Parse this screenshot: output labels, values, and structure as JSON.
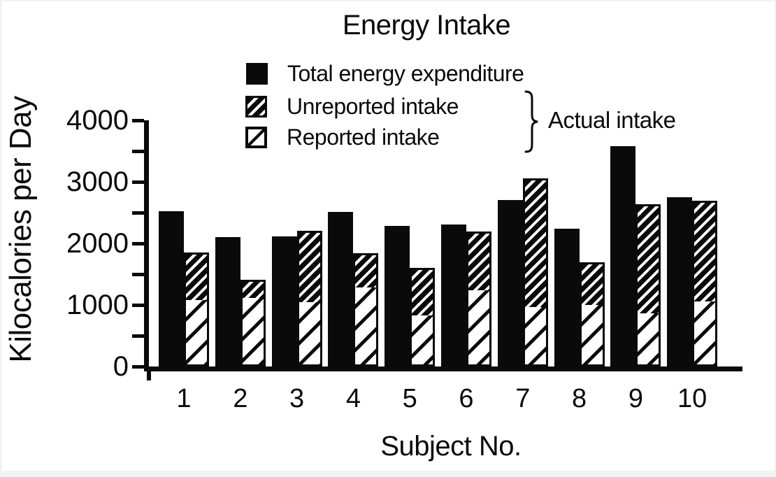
{
  "figure": {
    "title": "Energy Intake",
    "x_axis_title": "Subject No.",
    "y_axis_title": "Kilocalories per Day"
  },
  "legend": {
    "items": [
      {
        "label": "Total energy expenditure",
        "swatch": "solid-black"
      },
      {
        "label": "Unreported intake",
        "swatch": "dense-diagonal-hatch"
      },
      {
        "label": "Reported intake",
        "swatch": "sparse-diagonal-hatch"
      }
    ],
    "brace_group_label": "Actual intake",
    "brace_icon": "curly-brace-right"
  },
  "colors": {
    "ink": "#0a0a0a",
    "paper": "#ffffff",
    "edge": "#f2f2f3"
  },
  "chart_data": {
    "type": "bar",
    "title": "Energy Intake",
    "xlabel": "Subject No.",
    "ylabel": "Kilocalories per Day",
    "ylim": [
      0,
      4000
    ],
    "y_major_ticks": [
      0,
      1000,
      2000,
      3000,
      4000
    ],
    "y_minor_tick_step": 500,
    "grid": false,
    "legend_position": "top",
    "categories": [
      "1",
      "2",
      "3",
      "4",
      "5",
      "6",
      "7",
      "8",
      "9",
      "10"
    ],
    "series": [
      {
        "name": "Total energy expenditure",
        "pattern": "solid-black",
        "role": "standalone-bar",
        "values": [
          2520,
          2100,
          2110,
          2510,
          2280,
          2310,
          2700,
          2240,
          3580,
          2750
        ]
      },
      {
        "name": "Unreported intake",
        "pattern": "dense-diagonal-hatch",
        "role": "stack-top",
        "values": [
          770,
          280,
          1160,
          540,
          770,
          950,
          2110,
          680,
          1790,
          1640
        ]
      },
      {
        "name": "Reported intake",
        "pattern": "sparse-diagonal-hatch",
        "role": "stack-bottom",
        "values": [
          1080,
          1130,
          1040,
          1300,
          830,
          1240,
          950,
          1010,
          850,
          1050
        ]
      }
    ],
    "actual_intake_totals": [
      1850,
      1410,
      2200,
      1840,
      1600,
      2190,
      3060,
      1690,
      2640,
      2690
    ]
  }
}
